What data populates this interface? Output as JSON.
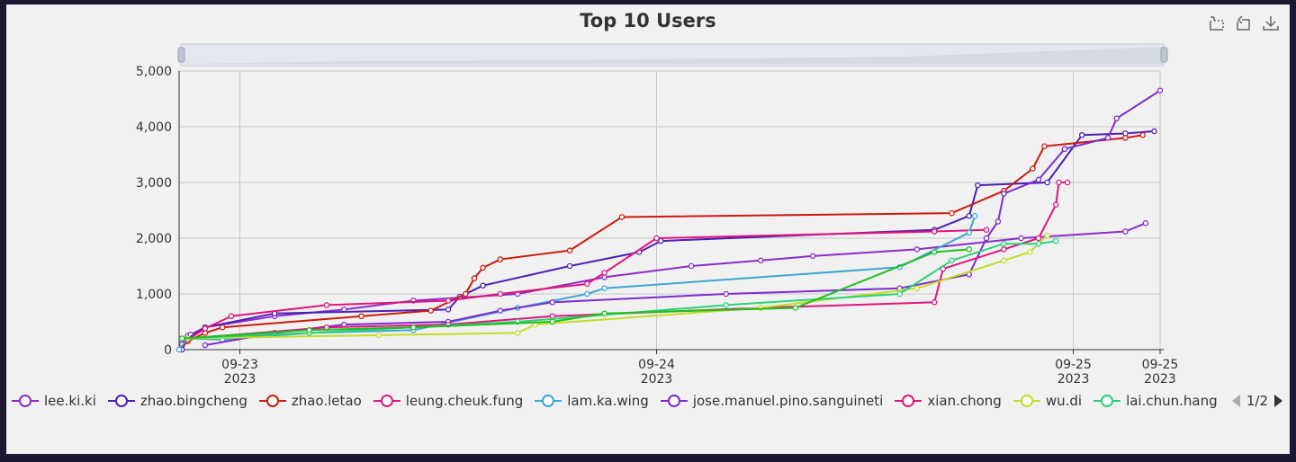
{
  "chart_data": {
    "type": "line",
    "title": "Top 10 Users",
    "ylim": [
      0,
      5000
    ],
    "yticks": [
      0,
      1000,
      2000,
      3000,
      4000,
      5000
    ],
    "ytick_labels": [
      "0",
      "1,000",
      "2,000",
      "3,000",
      "4,000",
      "5,000"
    ],
    "xlim": [
      "2023-09-22 20:30",
      "2023-09-25 05:00"
    ],
    "xticks": [
      {
        "x": "2023-09-23 00:00",
        "line1": "09-23",
        "line2": "2023"
      },
      {
        "x": "2023-09-24 00:00",
        "line1": "09-24",
        "line2": "2023"
      },
      {
        "x": "2023-09-25 00:00",
        "line1": "09-25",
        "line2": "2023"
      },
      {
        "x": "2023-09-25 05:00",
        "line1": "09-25",
        "line2": "2023"
      }
    ],
    "legend_position": "bottom",
    "legend_page": "1/2",
    "series": [
      {
        "name": "lee.ki.ki",
        "color": "#8a2bc8",
        "points": [
          [
            "2023-09-22 20:40",
            100
          ],
          [
            "2023-09-22 21:00",
            250
          ],
          [
            "2023-09-22 21:10",
            270
          ],
          [
            "2023-09-22 22:00",
            400
          ],
          [
            "2023-09-23 02:00",
            600
          ],
          [
            "2023-09-23 06:00",
            720
          ],
          [
            "2023-09-23 10:00",
            880
          ],
          [
            "2023-09-23 16:00",
            1000
          ],
          [
            "2023-09-23 21:00",
            1300
          ],
          [
            "2023-09-24 02:00",
            1500
          ],
          [
            "2023-09-24 06:00",
            1600
          ],
          [
            "2023-09-24 09:00",
            1680
          ],
          [
            "2023-09-24 15:00",
            1800
          ],
          [
            "2023-09-24 21:00",
            2000
          ],
          [
            "2023-09-25 03:00",
            2120
          ],
          [
            "2023-09-25 04:10",
            2270
          ]
        ]
      },
      {
        "name": "zhao.bingcheng",
        "color": "#4b1fb5",
        "points": [
          [
            "2023-09-22 20:40",
            0
          ],
          [
            "2023-09-22 21:00",
            200
          ],
          [
            "2023-09-22 22:00",
            400
          ],
          [
            "2023-09-23 02:00",
            650
          ],
          [
            "2023-09-23 12:00",
            720
          ],
          [
            "2023-09-23 12:40",
            950
          ],
          [
            "2023-09-23 14:00",
            1150
          ],
          [
            "2023-09-23 19:00",
            1500
          ],
          [
            "2023-09-23 23:00",
            1750
          ],
          [
            "2023-09-24 00:15",
            1950
          ],
          [
            "2023-09-24 16:00",
            2150
          ],
          [
            "2023-09-24 18:00",
            2400
          ],
          [
            "2023-09-24 18:30",
            2950
          ],
          [
            "2023-09-24 22:30",
            3000
          ],
          [
            "2023-09-25 00:30",
            3850
          ],
          [
            "2023-09-25 03:00",
            3880
          ],
          [
            "2023-09-25 04:40",
            3920
          ]
        ]
      },
      {
        "name": "zhao.letao",
        "color": "#cc1a0e",
        "points": [
          [
            "2023-09-22 20:30",
            0
          ],
          [
            "2023-09-22 21:00",
            150
          ],
          [
            "2023-09-22 22:00",
            300
          ],
          [
            "2023-09-22 23:00",
            400
          ],
          [
            "2023-09-23 07:00",
            600
          ],
          [
            "2023-09-23 11:00",
            700
          ],
          [
            "2023-09-23 13:00",
            1000
          ],
          [
            "2023-09-23 13:30",
            1280
          ],
          [
            "2023-09-23 14:00",
            1470
          ],
          [
            "2023-09-23 15:00",
            1620
          ],
          [
            "2023-09-23 19:00",
            1780
          ],
          [
            "2023-09-23 22:00",
            2380
          ],
          [
            "2023-09-24 17:00",
            2450
          ],
          [
            "2023-09-24 20:00",
            2850
          ],
          [
            "2023-09-24 21:40",
            3250
          ],
          [
            "2023-09-24 22:20",
            3650
          ],
          [
            "2023-09-25 03:00",
            3800
          ],
          [
            "2023-09-25 04:00",
            3850
          ]
        ]
      },
      {
        "name": "leung.cheuk.fung",
        "color": "#e0157d",
        "points": [
          [
            "2023-09-22 21:00",
            180
          ],
          [
            "2023-09-22 22:00",
            380
          ],
          [
            "2023-09-22 23:30",
            600
          ],
          [
            "2023-09-23 05:00",
            800
          ],
          [
            "2023-09-23 12:00",
            880
          ],
          [
            "2023-09-23 15:00",
            1000
          ],
          [
            "2023-09-23 20:00",
            1180
          ],
          [
            "2023-09-23 21:00",
            1380
          ],
          [
            "2023-09-24 00:00",
            2000
          ],
          [
            "2023-09-24 16:00",
            2120
          ],
          [
            "2023-09-24 19:00",
            2150
          ]
        ]
      },
      {
        "name": "lam.ka.wing",
        "color": "#3aa7d4",
        "points": [
          [
            "2023-09-22 20:30",
            0
          ],
          [
            "2023-09-22 21:00",
            200
          ],
          [
            "2023-09-22 23:00",
            180
          ],
          [
            "2023-09-23 04:00",
            300
          ],
          [
            "2023-09-23 10:00",
            350
          ],
          [
            "2023-09-23 16:00",
            750
          ],
          [
            "2023-09-23 20:00",
            1000
          ],
          [
            "2023-09-23 21:00",
            1100
          ],
          [
            "2023-09-24 14:00",
            1480
          ],
          [
            "2023-09-24 18:00",
            2100
          ],
          [
            "2023-09-24 18:20",
            2400
          ]
        ]
      },
      {
        "name": "jose.manuel.pino.sanguineti",
        "color": "#7b2cd0",
        "points": [
          [
            "2023-09-22 22:00",
            80
          ],
          [
            "2023-09-23 02:00",
            300
          ],
          [
            "2023-09-23 06:00",
            450
          ],
          [
            "2023-09-23 12:00",
            500
          ],
          [
            "2023-09-23 15:00",
            700
          ],
          [
            "2023-09-23 18:00",
            850
          ],
          [
            "2023-09-24 04:00",
            1000
          ],
          [
            "2023-09-24 14:00",
            1100
          ],
          [
            "2023-09-24 18:00",
            1350
          ],
          [
            "2023-09-24 19:00",
            2000
          ],
          [
            "2023-09-24 19:40",
            2300
          ],
          [
            "2023-09-24 20:00",
            2800
          ],
          [
            "2023-09-24 22:00",
            3050
          ],
          [
            "2023-09-24 23:30",
            3600
          ],
          [
            "2023-09-25 02:00",
            3800
          ],
          [
            "2023-09-25 02:30",
            4150
          ],
          [
            "2023-09-25 05:00",
            4650
          ]
        ]
      },
      {
        "name": "xian.chong",
        "color": "#e0157d",
        "points": [
          [
            "2023-09-22 21:00",
            200
          ],
          [
            "2023-09-23 05:00",
            400
          ],
          [
            "2023-09-23 12:00",
            450
          ],
          [
            "2023-09-23 18:00",
            600
          ],
          [
            "2023-09-24 06:00",
            750
          ],
          [
            "2023-09-24 16:00",
            850
          ],
          [
            "2023-09-24 16:30",
            1450
          ],
          [
            "2023-09-24 20:00",
            1800
          ],
          [
            "2023-09-24 22:00",
            2000
          ],
          [
            "2023-09-24 23:00",
            2600
          ],
          [
            "2023-09-24 23:10",
            3000
          ],
          [
            "2023-09-24 23:40",
            3000
          ]
        ]
      },
      {
        "name": "wu.di",
        "color": "#c5dc24",
        "points": [
          [
            "2023-09-22 21:00",
            200
          ],
          [
            "2023-09-23 08:00",
            260
          ],
          [
            "2023-09-23 16:00",
            300
          ],
          [
            "2023-09-23 17:00",
            450
          ],
          [
            "2023-09-24 06:00",
            750
          ],
          [
            "2023-09-24 15:00",
            1100
          ],
          [
            "2023-09-24 20:00",
            1600
          ],
          [
            "2023-09-24 21:30",
            1750
          ],
          [
            "2023-09-24 22:30",
            2050
          ]
        ]
      },
      {
        "name": "lai.chun.hang",
        "color": "#2ad178",
        "points": [
          [
            "2023-09-22 20:40",
            200
          ],
          [
            "2023-09-23 04:00",
            300
          ],
          [
            "2023-09-23 16:00",
            500
          ],
          [
            "2023-09-24 04:00",
            800
          ],
          [
            "2023-09-24 14:00",
            1000
          ],
          [
            "2023-09-24 17:00",
            1600
          ],
          [
            "2023-09-24 20:00",
            1900
          ],
          [
            "2023-09-24 22:00",
            1900
          ],
          [
            "2023-09-24 23:00",
            1950
          ]
        ]
      },
      {
        "name": "",
        "color": "#1fbf1f",
        "points": [
          [
            "2023-09-22 20:40",
            200
          ],
          [
            "2023-09-23 04:00",
            350
          ],
          [
            "2023-09-23 10:00",
            400
          ],
          [
            "2023-09-23 18:00",
            500
          ],
          [
            "2023-09-23 21:00",
            650
          ],
          [
            "2023-09-24 08:00",
            750
          ],
          [
            "2023-09-24 16:00",
            1750
          ],
          [
            "2023-09-24 18:00",
            1800
          ]
        ]
      }
    ]
  },
  "legend": {
    "items": [
      {
        "label": "lee.ki.ki",
        "color": "#8a2bc8"
      },
      {
        "label": "zhao.bingcheng",
        "color": "#4b1fb5"
      },
      {
        "label": "zhao.letao",
        "color": "#cc1a0e"
      },
      {
        "label": "leung.cheuk.fung",
        "color": "#e0157d"
      },
      {
        "label": "lam.ka.wing",
        "color": "#3aa7d4"
      },
      {
        "label": "jose.manuel.pino.sanguineti",
        "color": "#7b2cd0"
      },
      {
        "label": "xian.chong",
        "color": "#e0157d"
      },
      {
        "label": "wu.di",
        "color": "#c5dc24"
      },
      {
        "label": "lai.chun.hang",
        "color": "#2ad178"
      },
      {
        "label": "",
        "color": "#1fbf1f"
      }
    ],
    "page": "1/2"
  },
  "toolbox": {
    "icons": [
      "zoom-icon",
      "zoom-reset-icon",
      "download-icon"
    ]
  }
}
